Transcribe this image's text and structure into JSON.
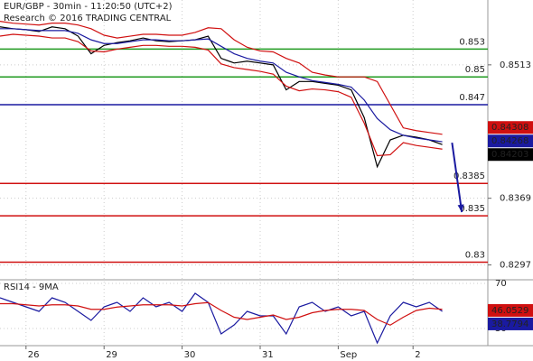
{
  "chart_data": {
    "type": "line",
    "title": "EUR/GBP - 30min - 11:20:50 (UTC+2)",
    "subtitle": "Research © 2016 TRADING CENTRAL",
    "x": [
      0,
      8,
      16,
      24,
      32,
      40,
      48,
      56,
      64,
      72,
      80,
      88,
      96,
      104,
      112,
      120,
      128,
      136,
      144,
      152,
      160,
      168,
      176,
      184,
      192,
      200,
      208,
      216,
      224,
      232,
      240,
      248,
      256,
      264,
      272
    ],
    "xlim": [
      0,
      300
    ],
    "xticks": [
      {
        "value": 16,
        "label": "26"
      },
      {
        "value": 64,
        "label": "29"
      },
      {
        "value": 112,
        "label": "30"
      },
      {
        "value": 160,
        "label": "31"
      },
      {
        "value": 208,
        "label": "Sep"
      },
      {
        "value": 254,
        "label": "2"
      }
    ],
    "ylim": [
      0.8281,
      0.8583
    ],
    "yticks": [
      0.8513,
      0.8369,
      0.8297
    ],
    "grid": true,
    "series": [
      {
        "color": "#000000",
        "values": [
          0.8554,
          0.8552,
          0.8551,
          0.8549,
          0.8554,
          0.8552,
          0.8544,
          0.8525,
          0.8534,
          0.8537,
          0.8539,
          0.8542,
          0.8539,
          0.8538,
          0.8539,
          0.854,
          0.8544,
          0.852,
          0.8515,
          0.8517,
          0.8515,
          0.8513,
          0.8486,
          0.8495,
          0.8495,
          0.8493,
          0.8491,
          0.8486,
          0.8456,
          0.8403,
          0.8432,
          0.8437,
          0.8435,
          0.8432,
          0.8427
        ]
      },
      {
        "color": "#1a1aa0",
        "values": [
          0.8552,
          0.8552,
          0.8551,
          0.855,
          0.855,
          0.855,
          0.8547,
          0.854,
          0.8536,
          0.8536,
          0.8538,
          0.854,
          0.854,
          0.8539,
          0.8539,
          0.854,
          0.8541,
          0.8533,
          0.8525,
          0.852,
          0.8517,
          0.8515,
          0.8505,
          0.85,
          0.8496,
          0.8494,
          0.8492,
          0.8489,
          0.8475,
          0.8455,
          0.8443,
          0.8437,
          0.8434,
          0.8432,
          0.843
        ]
      },
      {
        "color": "#d01010",
        "values": [
          0.856,
          0.8558,
          0.8557,
          0.8556,
          0.8558,
          0.8558,
          0.8556,
          0.8552,
          0.8545,
          0.8542,
          0.8544,
          0.8546,
          0.8546,
          0.8545,
          0.8545,
          0.8548,
          0.8553,
          0.8552,
          0.854,
          0.8532,
          0.8528,
          0.8527,
          0.852,
          0.8515,
          0.8505,
          0.8502,
          0.85,
          0.85,
          0.85,
          0.8495,
          0.847,
          0.8445,
          0.8442,
          0.844,
          0.8438
        ]
      },
      {
        "color": "#d01010",
        "values": [
          0.8544,
          0.8546,
          0.8545,
          0.8544,
          0.8542,
          0.8542,
          0.8538,
          0.8528,
          0.8527,
          0.853,
          0.8532,
          0.8534,
          0.8534,
          0.8533,
          0.8533,
          0.8532,
          0.8529,
          0.8514,
          0.851,
          0.8508,
          0.8506,
          0.8503,
          0.849,
          0.8485,
          0.8487,
          0.8486,
          0.8484,
          0.8478,
          0.845,
          0.8415,
          0.8416,
          0.8429,
          0.8426,
          0.8424,
          0.8422
        ]
      }
    ],
    "levels": [
      {
        "value": 0.853,
        "color": "#1f9a1f"
      },
      {
        "value": 0.85,
        "color": "#1f9a1f"
      },
      {
        "value": 0.847,
        "color": "#1a1aa0"
      },
      {
        "value": 0.8385,
        "color": "#d01010"
      },
      {
        "value": 0.835,
        "color": "#d01010"
      },
      {
        "value": 0.83,
        "color": "#d01010"
      }
    ],
    "price_tags": [
      {
        "value": 0.84308,
        "color": "#d01010"
      },
      {
        "value": 0.84268,
        "color": "#1a1aa0"
      },
      {
        "value": 0.84203,
        "color": "#000000"
      }
    ],
    "arrow": {
      "x": [
        278,
        284
      ],
      "y": [
        0.8429,
        0.8354
      ],
      "color": "#1a1aa0"
    },
    "rsi": {
      "label": "RSI14 - 9MA",
      "ylim": [
        14.8,
        73.2
      ],
      "yticks": [
        70,
        30
      ],
      "series": [
        {
          "color": "#1a1aa0",
          "values": [
            57.2,
            53.2,
            49.2,
            45.2,
            57.2,
            53.2,
            45.2,
            37.2,
            49.2,
            53.2,
            45.2,
            57.2,
            49.2,
            53.2,
            45.2,
            61.2,
            53.2,
            25.2,
            33.2,
            45.2,
            41.2,
            41.2,
            25.2,
            49.2,
            53.2,
            45.2,
            49.2,
            41.2,
            45.2,
            17.2,
            41.2,
            53.2,
            49.2,
            53.2,
            45.2
          ]
        },
        {
          "color": "#d01010",
          "values": [
            52,
            52,
            51,
            50,
            51,
            51,
            50,
            47,
            47,
            49,
            50,
            51,
            51,
            51,
            50,
            52,
            53,
            46,
            40,
            38,
            40,
            42,
            38,
            40,
            44,
            46,
            47,
            47,
            46,
            38,
            33,
            40,
            46,
            48,
            47
          ]
        }
      ],
      "price_tags": [
        {
          "value": 46.0529,
          "color": "#d01010"
        },
        {
          "value": 38.7794,
          "color": "#1a1aa0"
        }
      ]
    }
  }
}
